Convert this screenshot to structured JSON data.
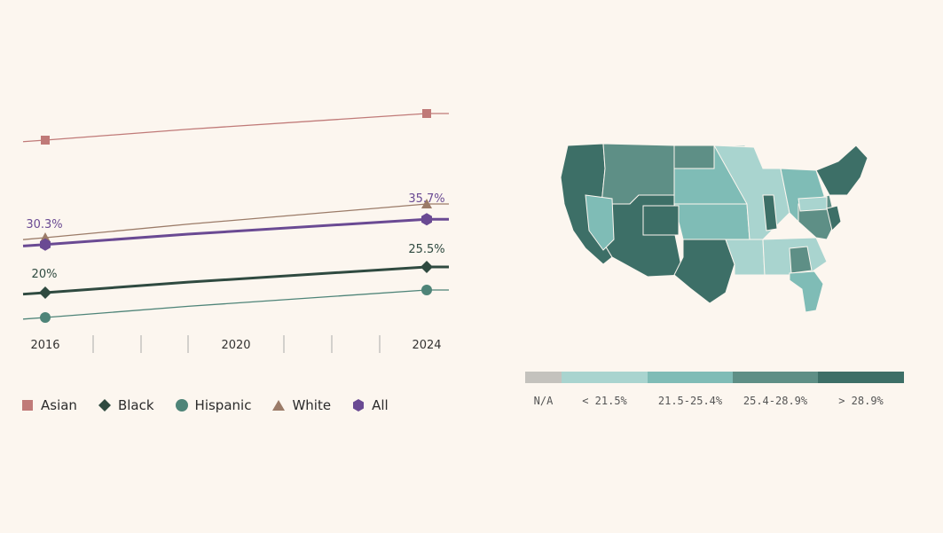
{
  "chart_data": [
    {
      "type": "line",
      "x": [
        2016,
        2024
      ],
      "xticks": [
        "2016",
        "2020",
        "2024"
      ],
      "series": [
        {
          "name": "Asian",
          "values": [
            null,
            null
          ],
          "color": "#c07a78",
          "marker": "square"
        },
        {
          "name": "Black",
          "values": [
            20,
            25.5
          ],
          "color": "#2f4a40",
          "marker": "diamond"
        },
        {
          "name": "Hispanic",
          "values": [
            null,
            null
          ],
          "color": "#4e8478",
          "marker": "circle"
        },
        {
          "name": "White",
          "values": [
            null,
            null
          ],
          "color": "#9b7b68",
          "marker": "triangle"
        },
        {
          "name": "All",
          "values": [
            30.3,
            35.7
          ],
          "color": "#6a4a93",
          "marker": "hexagon"
        }
      ],
      "data_labels": {
        "All": [
          "30.3%",
          "35.7%"
        ],
        "Black": [
          "20%",
          "25.5%"
        ]
      },
      "grid": false,
      "legend_position": "bottom"
    },
    {
      "type": "map",
      "region": "United States",
      "legend": [
        {
          "label": "N/A",
          "color": "#c4c2bd"
        },
        {
          "label": "< 21.5%",
          "color": "#a9d4cf"
        },
        {
          "label": "21.5-25.4%",
          "color": "#7fbcb6"
        },
        {
          "label": "25.4-28.9%",
          "color": "#5e8f86"
        },
        {
          "label": "> 28.9%",
          "color": "#3d6f67"
        }
      ]
    }
  ],
  "legend": {
    "items": [
      {
        "label": "Asian"
      },
      {
        "label": "Black"
      },
      {
        "label": "Hispanic"
      },
      {
        "label": "White"
      },
      {
        "label": "All"
      }
    ]
  }
}
